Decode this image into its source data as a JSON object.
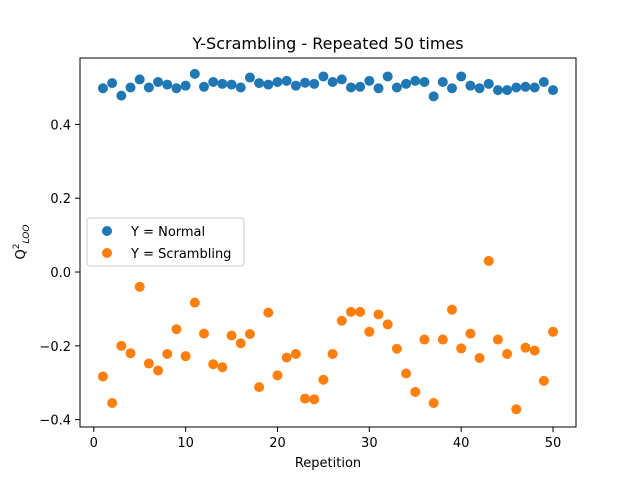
{
  "chart_data": {
    "type": "scatter",
    "title": "Y-Scrambling - Repeated 50 times",
    "xlabel": "Repetition",
    "ylabel_main": "Q",
    "ylabel_sup": "2",
    "ylabel_sub": "LOO",
    "xlim": [
      -1.5,
      52.5
    ],
    "ylim": [
      -0.42,
      0.58
    ],
    "xticks": [
      0,
      10,
      20,
      30,
      40,
      50
    ],
    "xtick_labels": [
      "0",
      "10",
      "20",
      "30",
      "40",
      "50"
    ],
    "yticks": [
      -0.4,
      -0.2,
      0.0,
      0.2,
      0.4
    ],
    "ytick_labels": [
      "−0.4",
      "−0.2",
      "0.0",
      "0.2",
      "0.4"
    ],
    "grid": false,
    "legend_position": "center-left",
    "series": [
      {
        "name": "Y = Normal",
        "color": "#1f77b4",
        "x": [
          1,
          2,
          3,
          4,
          5,
          6,
          7,
          8,
          9,
          10,
          11,
          12,
          13,
          14,
          15,
          16,
          17,
          18,
          19,
          20,
          21,
          22,
          23,
          24,
          25,
          26,
          27,
          28,
          29,
          30,
          31,
          32,
          33,
          34,
          35,
          36,
          37,
          38,
          39,
          40,
          41,
          42,
          43,
          44,
          45,
          46,
          47,
          48,
          49,
          50
        ],
        "y": [
          0.498,
          0.512,
          0.478,
          0.5,
          0.522,
          0.5,
          0.515,
          0.508,
          0.498,
          0.505,
          0.537,
          0.502,
          0.515,
          0.51,
          0.508,
          0.5,
          0.527,
          0.512,
          0.508,
          0.515,
          0.518,
          0.505,
          0.513,
          0.51,
          0.53,
          0.515,
          0.522,
          0.5,
          0.502,
          0.518,
          0.498,
          0.53,
          0.5,
          0.51,
          0.518,
          0.515,
          0.476,
          0.515,
          0.498,
          0.53,
          0.505,
          0.498,
          0.51,
          0.493,
          0.493,
          0.5,
          0.502,
          0.5,
          0.515,
          0.493
        ]
      },
      {
        "name": "Y = Scrambling",
        "color": "#ff7f0e",
        "x": [
          1,
          2,
          3,
          4,
          5,
          6,
          7,
          8,
          9,
          10,
          11,
          12,
          13,
          14,
          15,
          16,
          17,
          18,
          19,
          20,
          21,
          22,
          23,
          24,
          25,
          26,
          27,
          28,
          29,
          30,
          31,
          32,
          33,
          34,
          35,
          36,
          37,
          38,
          39,
          40,
          41,
          42,
          43,
          44,
          45,
          46,
          47,
          48,
          49,
          50
        ],
        "y": [
          -0.283,
          -0.355,
          -0.2,
          -0.22,
          -0.04,
          -0.248,
          -0.267,
          -0.222,
          -0.155,
          -0.228,
          -0.083,
          -0.167,
          -0.25,
          -0.258,
          -0.172,
          -0.193,
          -0.168,
          -0.312,
          -0.11,
          -0.28,
          -0.232,
          -0.222,
          -0.343,
          -0.345,
          -0.292,
          -0.222,
          -0.132,
          -0.108,
          -0.108,
          -0.162,
          -0.115,
          -0.142,
          -0.208,
          -0.275,
          -0.325,
          -0.183,
          -0.355,
          -0.183,
          -0.102,
          -0.207,
          -0.167,
          -0.233,
          0.03,
          -0.183,
          -0.222,
          -0.372,
          -0.205,
          -0.213,
          -0.295,
          -0.162
        ]
      }
    ]
  }
}
